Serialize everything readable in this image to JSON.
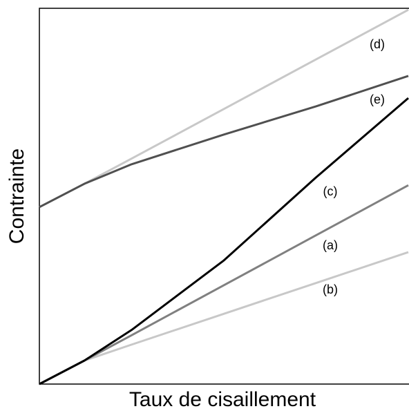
{
  "chart_data": {
    "type": "line",
    "xlabel": "Taux de cisaillement",
    "ylabel": "Contrainte",
    "x": [
      0,
      1.22,
      2.5,
      5,
      7.5,
      10
    ],
    "xlim": [
      0,
      10
    ],
    "ylim": [
      0,
      10
    ],
    "series": [
      {
        "name": "(d)",
        "color": "#c8c8c8",
        "values": [
          4.71,
          5.33,
          6.0,
          7.32,
          8.64,
          9.96
        ]
      },
      {
        "name": "(e)",
        "color": "#505050",
        "values": [
          4.71,
          5.33,
          5.85,
          6.64,
          7.39,
          8.2
        ]
      },
      {
        "name": "(b)",
        "color": "#c8c8c8",
        "values": [
          0,
          0.625,
          1.05,
          1.87,
          2.69,
          3.51
        ]
      },
      {
        "name": "(a)",
        "color": "#808080",
        "values": [
          0,
          0.625,
          1.3,
          2.63,
          3.96,
          5.29
        ]
      },
      {
        "name": "(c)",
        "color": "#000000",
        "values": [
          0,
          0.625,
          1.44,
          3.29,
          5.5,
          7.61
        ]
      }
    ]
  }
}
